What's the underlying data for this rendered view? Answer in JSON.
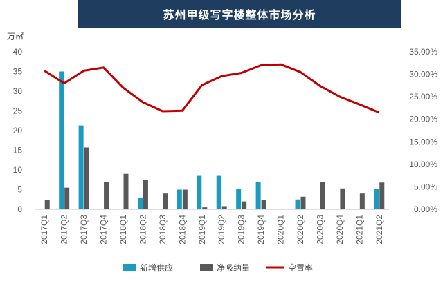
{
  "chart_data": {
    "type": "bar",
    "title": "苏州甲级写字楼整体市场分析",
    "y_left_unit": "万㎡",
    "categories": [
      "2017Q1",
      "2017Q2",
      "2017Q3",
      "2017Q4",
      "2018Q1",
      "2018Q2",
      "2018Q3",
      "2018Q4",
      "2019Q1",
      "2019Q2",
      "2019Q3",
      "2019Q4",
      "2020Q1",
      "2020Q2",
      "2020Q3",
      "2020Q4",
      "2021Q1",
      "2021Q2"
    ],
    "y_left_ticks": [
      "0",
      "5",
      "10",
      "15",
      "20",
      "25",
      "30",
      "35",
      "40"
    ],
    "y_right_ticks": [
      "0.00%",
      "5.00%",
      "10.00%",
      "15.00%",
      "20.00%",
      "25.00%",
      "30.00%",
      "35.00%"
    ],
    "ylim_left": [
      0,
      40
    ],
    "ylim_right": [
      0,
      0.35
    ],
    "series": [
      {
        "name": "新增供应",
        "type": "bar",
        "axis": "left",
        "color": "#1a9bbf",
        "values": [
          0,
          35.0,
          21.3,
          0,
          0,
          3.0,
          0,
          5.0,
          8.5,
          8.5,
          5.1,
          7.0,
          0,
          2.5,
          0,
          0,
          0,
          5.1
        ]
      },
      {
        "name": "净吸纳量",
        "type": "bar",
        "axis": "left",
        "color": "#595959",
        "values": [
          2.3,
          5.5,
          15.7,
          7.0,
          9.0,
          7.5,
          4.0,
          5.0,
          0.5,
          0.8,
          2.0,
          2.4,
          0,
          3.2,
          7.0,
          5.3,
          4.0,
          6.8
        ]
      },
      {
        "name": "空置率",
        "type": "line",
        "axis": "right",
        "color": "#c00000",
        "values": [
          0.308,
          0.28,
          0.308,
          0.315,
          0.27,
          0.238,
          0.218,
          0.219,
          0.276,
          0.296,
          0.303,
          0.32,
          0.322,
          0.305,
          0.274,
          0.25,
          0.233,
          0.215
        ]
      }
    ],
    "legend_position": "bottom",
    "grid": false
  }
}
